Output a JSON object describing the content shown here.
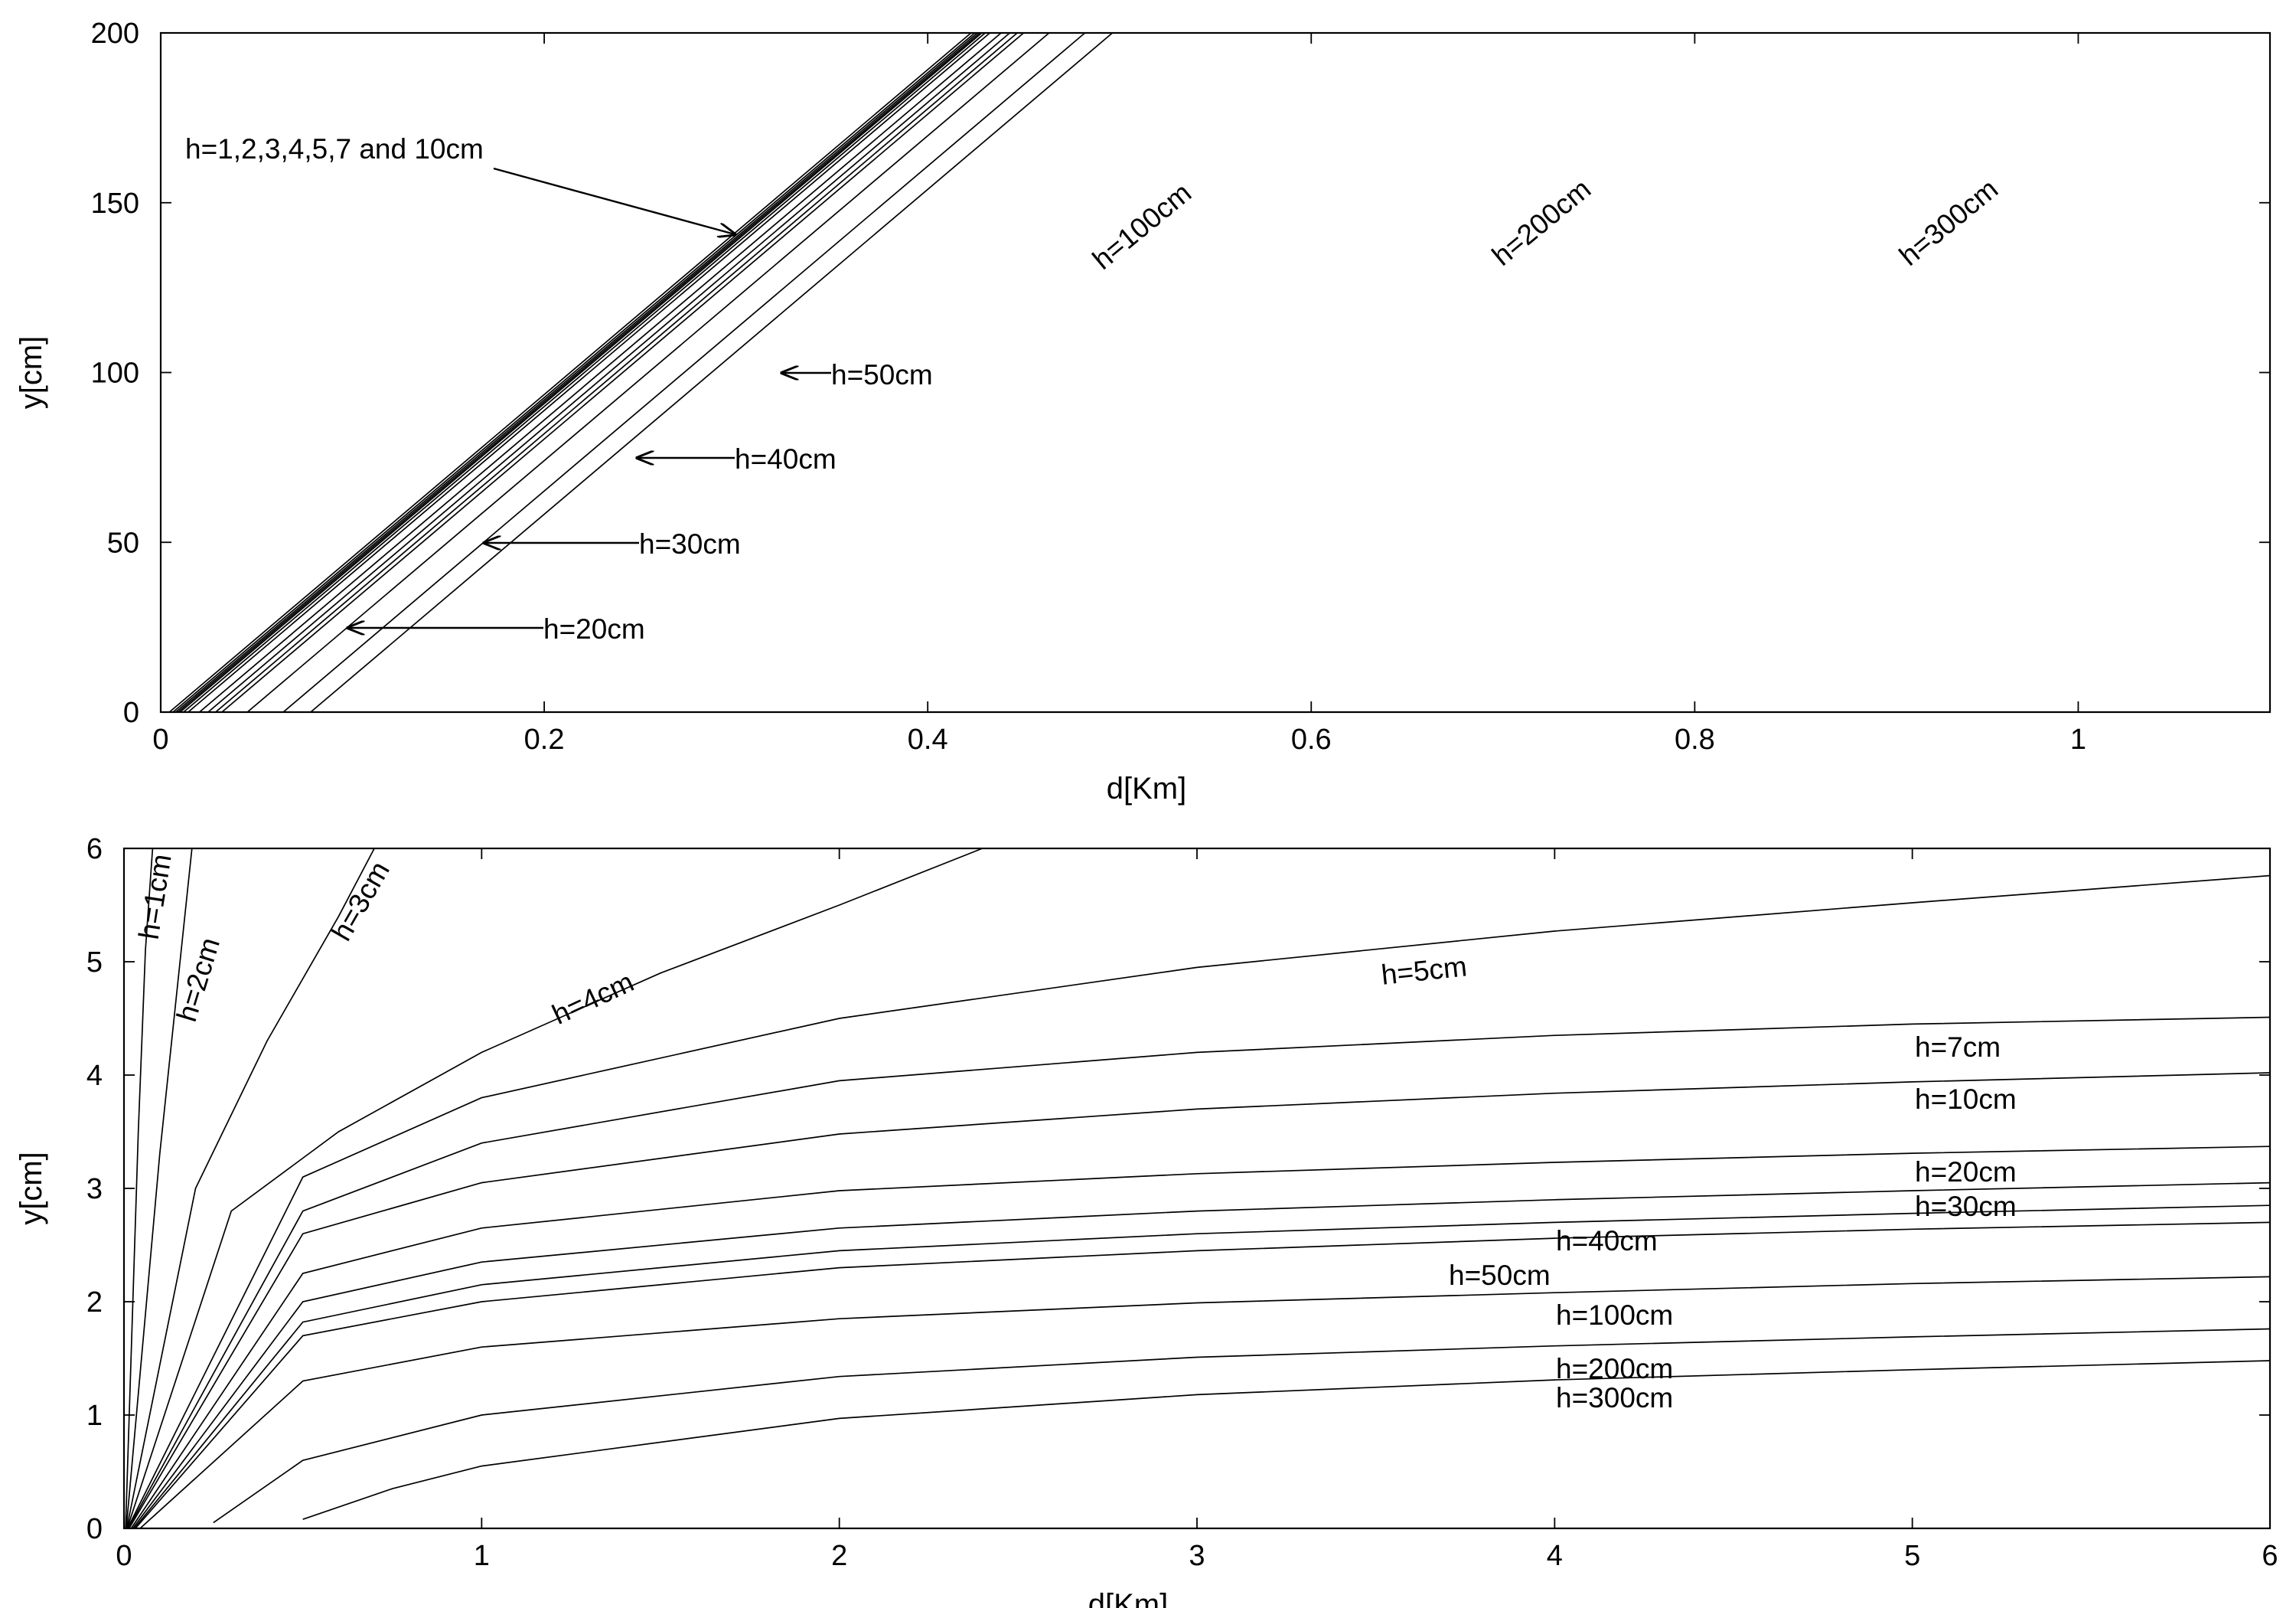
{
  "chart_data": [
    {
      "type": "line",
      "xlabel": "d[Km]",
      "ylabel": "y[cm]",
      "xlim": [
        0,
        1.1
      ],
      "ylim": [
        0,
        200
      ],
      "xticks": [
        0,
        0.2,
        0.4,
        0.6,
        0.8,
        1
      ],
      "xtick_labels": [
        "0",
        "0.2",
        "0.4",
        "0.6",
        "0.8",
        "1"
      ],
      "yticks": [
        0,
        50,
        100,
        150,
        200
      ],
      "ytick_labels": [
        "0",
        "50",
        "100",
        "150",
        "200"
      ],
      "grid": false,
      "series": [
        {
          "name": "h=1cm",
          "x": [
            0.0045,
            0.4226
          ],
          "y": [
            0,
            200
          ]
        },
        {
          "name": "h=2cm",
          "x": [
            0.0064,
            0.4245
          ],
          "y": [
            0,
            200
          ]
        },
        {
          "name": "h=3cm",
          "x": [
            0.0078,
            0.4259
          ],
          "y": [
            0,
            200
          ]
        },
        {
          "name": "h=4cm",
          "x": [
            0.009,
            0.4271
          ],
          "y": [
            0,
            200
          ]
        },
        {
          "name": "h=5cm",
          "x": [
            0.0101,
            0.4282
          ],
          "y": [
            0,
            200
          ]
        },
        {
          "name": "h=7cm",
          "x": [
            0.0119,
            0.43
          ],
          "y": [
            0,
            200
          ]
        },
        {
          "name": "h=10cm",
          "x": [
            0.0143,
            0.4324
          ],
          "y": [
            0,
            200
          ]
        },
        {
          "name": "h=20cm",
          "x": [
            0.0202,
            0.4383
          ],
          "y": [
            0,
            200
          ]
        },
        {
          "name": "h=30cm",
          "x": [
            0.0247,
            0.4428
          ],
          "y": [
            0,
            200
          ]
        },
        {
          "name": "h=40cm",
          "x": [
            0.0286,
            0.4467
          ],
          "y": [
            0,
            200
          ]
        },
        {
          "name": "h=50cm",
          "x": [
            0.0319,
            0.45
          ],
          "y": [
            0,
            200
          ]
        },
        {
          "name": "h=100cm",
          "x": [
            0.0452,
            0.4633
          ],
          "y": [
            0,
            200
          ]
        },
        {
          "name": "h=200cm",
          "x": [
            0.0639,
            0.482
          ],
          "y": [
            0,
            200
          ]
        },
        {
          "name": "h=300cm",
          "x": [
            0.0782,
            0.4963
          ],
          "y": [
            0,
            200
          ]
        }
      ],
      "annotations": [
        {
          "text": "h=1,2,3,4,5,7 and 10cm"
        },
        {
          "text": "h=20cm"
        },
        {
          "text": "h=30cm"
        },
        {
          "text": "h=40cm"
        },
        {
          "text": "h=50cm"
        },
        {
          "text": "h=100cm"
        },
        {
          "text": "h=200cm"
        },
        {
          "text": "h=300cm"
        }
      ]
    },
    {
      "type": "line",
      "xlabel": "d[Km]",
      "ylabel": "y[cm]",
      "xlim": [
        0,
        6
      ],
      "ylim": [
        0,
        6
      ],
      "xticks": [
        0,
        1,
        2,
        3,
        4,
        5,
        6
      ],
      "xtick_labels": [
        "0",
        "1",
        "2",
        "3",
        "4",
        "5",
        "6"
      ],
      "yticks": [
        0,
        1,
        2,
        3,
        4,
        5,
        6
      ],
      "ytick_labels": [
        "0",
        "1",
        "2",
        "3",
        "4",
        "5",
        "6"
      ],
      "grid": false,
      "series": [
        {
          "name": "h=1cm",
          "x": [
            0.0045,
            0.04,
            0.06,
            0.08
          ],
          "y": [
            0,
            3.5,
            5.1,
            6
          ]
        },
        {
          "name": "h=2cm",
          "x": [
            0.0064,
            0.1,
            0.15,
            0.19
          ],
          "y": [
            0,
            3.3,
            4.8,
            6
          ]
        },
        {
          "name": "h=3cm",
          "x": [
            0.0078,
            0.2,
            0.4,
            0.6,
            0.7
          ],
          "y": [
            0,
            3.0,
            4.3,
            5.4,
            6
          ]
        },
        {
          "name": "h=4cm",
          "x": [
            0.009,
            0.3,
            0.6,
            1.0,
            1.5,
            2.0,
            2.4
          ],
          "y": [
            0,
            2.8,
            3.5,
            4.2,
            4.9,
            5.5,
            6
          ]
        },
        {
          "name": "h=5cm",
          "x": [
            0.0101,
            0.5,
            1.0,
            2.0,
            3.0,
            4.0,
            5.0,
            6.0
          ],
          "y": [
            0,
            3.1,
            3.8,
            4.5,
            4.95,
            5.27,
            5.52,
            5.76
          ]
        },
        {
          "name": "h=7cm",
          "x": [
            0.0119,
            0.5,
            1.0,
            2.0,
            3.0,
            4.0,
            5.0,
            6.0
          ],
          "y": [
            0,
            2.8,
            3.4,
            3.95,
            4.2,
            4.35,
            4.45,
            4.51
          ]
        },
        {
          "name": "h=10cm",
          "x": [
            0.0143,
            0.5,
            1.0,
            2.0,
            3.0,
            4.0,
            5.0,
            6.0
          ],
          "y": [
            0,
            2.6,
            3.05,
            3.48,
            3.7,
            3.84,
            3.94,
            4.02
          ]
        },
        {
          "name": "h=20cm",
          "x": [
            0.0202,
            0.5,
            1.0,
            2.0,
            3.0,
            4.0,
            5.0,
            6.0
          ],
          "y": [
            0,
            2.25,
            2.65,
            2.98,
            3.13,
            3.23,
            3.31,
            3.37
          ]
        },
        {
          "name": "h=30cm",
          "x": [
            0.0247,
            0.5,
            1.0,
            2.0,
            3.0,
            4.0,
            5.0,
            6.0
          ],
          "y": [
            0,
            2.0,
            2.35,
            2.65,
            2.8,
            2.9,
            2.98,
            3.05
          ]
        },
        {
          "name": "h=40cm",
          "x": [
            0.0286,
            0.5,
            1.0,
            2.0,
            3.0,
            4.0,
            5.0,
            6.0
          ],
          "y": [
            0,
            1.82,
            2.15,
            2.45,
            2.6,
            2.7,
            2.78,
            2.85
          ]
        },
        {
          "name": "h=50cm",
          "x": [
            0.0319,
            0.5,
            1.0,
            2.0,
            3.0,
            4.0,
            5.0,
            6.0
          ],
          "y": [
            0,
            1.7,
            2.0,
            2.3,
            2.45,
            2.56,
            2.64,
            2.7
          ]
        },
        {
          "name": "h=100cm",
          "x": [
            0.0452,
            0.5,
            1.0,
            2.0,
            3.0,
            4.0,
            5.0,
            6.0
          ],
          "y": [
            0,
            1.3,
            1.6,
            1.85,
            1.99,
            2.08,
            2.16,
            2.22
          ]
        },
        {
          "name": "h=200cm",
          "x": [
            0.25,
            0.5,
            1.0,
            2.0,
            3.0,
            4.0,
            5.0,
            6.0
          ],
          "y": [
            0.05,
            0.6,
            1.0,
            1.34,
            1.51,
            1.61,
            1.69,
            1.76
          ]
        },
        {
          "name": "h=300cm",
          "x": [
            0.5,
            0.75,
            1.0,
            2.0,
            3.0,
            4.0,
            5.0,
            6.0
          ],
          "y": [
            0.08,
            0.35,
            0.55,
            0.97,
            1.18,
            1.31,
            1.4,
            1.48
          ]
        }
      ],
      "annotations": [
        {
          "text": "h=1cm"
        },
        {
          "text": "h=2cm"
        },
        {
          "text": "h=3cm"
        },
        {
          "text": "h=4cm"
        },
        {
          "text": "h=5cm"
        },
        {
          "text": "h=7cm"
        },
        {
          "text": "h=10cm"
        },
        {
          "text": "h=20cm"
        },
        {
          "text": "h=30cm"
        },
        {
          "text": "h=40cm"
        },
        {
          "text": "h=50cm"
        },
        {
          "text": "h=100cm"
        },
        {
          "text": "h=200cm"
        },
        {
          "text": "h=300cm"
        }
      ]
    }
  ]
}
